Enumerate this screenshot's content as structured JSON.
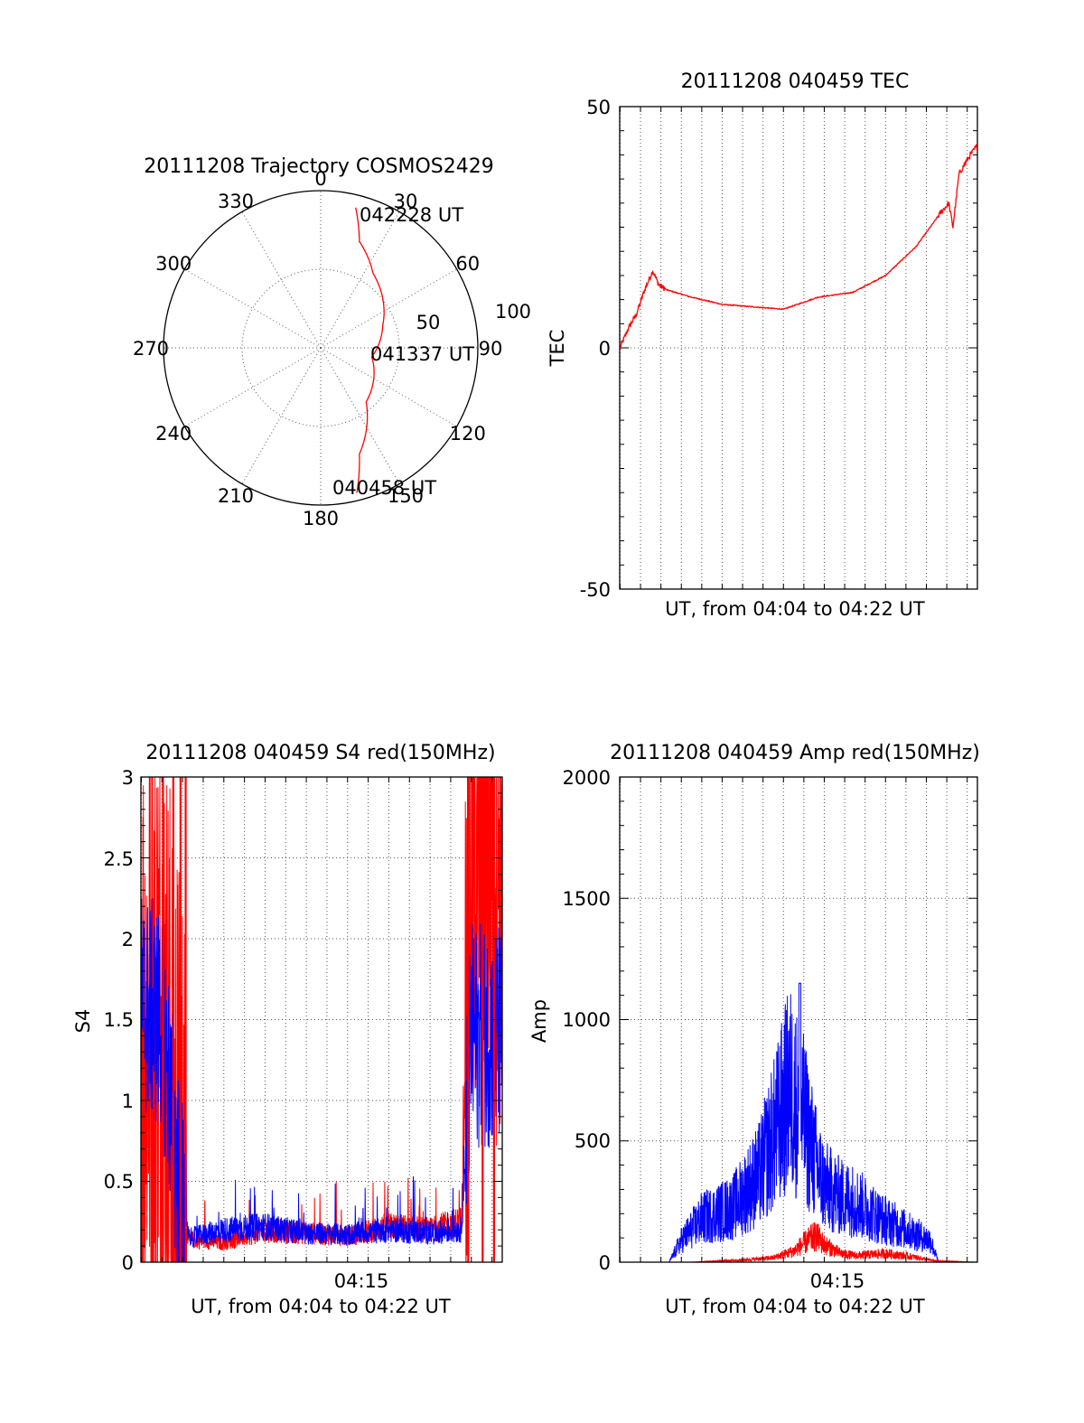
{
  "colors": {
    "red": "#ff0000",
    "blue": "#0000ff",
    "axis": "#000000"
  },
  "chart_data": [
    {
      "type": "scatter",
      "panel": "trajectory",
      "title": "20111208 Trajectory COSMOS2429",
      "azimuth_labels": [
        "0",
        "30",
        "60",
        "90",
        "120",
        "150",
        "180",
        "210",
        "240",
        "270",
        "300",
        "330"
      ],
      "radius_labels": [
        "50",
        "100"
      ],
      "track": {
        "color": "#ff0000",
        "points": [
          [
            14,
            92
          ],
          [
            20,
            72
          ],
          [
            35,
            58
          ],
          [
            70,
            42
          ],
          [
            100,
            33
          ],
          [
            140,
            45
          ],
          [
            160,
            72
          ],
          [
            166,
            95
          ]
        ]
      },
      "time_labels": [
        "042228 UT",
        "041337 UT",
        "040458 UT"
      ]
    },
    {
      "type": "line",
      "panel": "tec",
      "title": "20111208 040459 TEC",
      "xlabel": "UT, from 04:04 to 04:22 UT",
      "ylabel": "TEC",
      "xlim": [
        244.98,
        262.5
      ],
      "ylim": [
        -50,
        50
      ],
      "yticks": [
        "50",
        "0",
        "-50"
      ],
      "series": [
        {
          "color": "#ff0000",
          "x": [
            245.0,
            245.4,
            245.8,
            246.2,
            246.6,
            246.9,
            247.3,
            248.5,
            250.0,
            251.5,
            253.0,
            254.7,
            256.4,
            258.0,
            259.5,
            260.7,
            261.1,
            261.3,
            261.6,
            262.0,
            262.5
          ],
          "values": [
            0,
            4,
            7,
            12,
            16,
            13,
            12,
            10.5,
            9,
            8.5,
            8,
            10.5,
            11.5,
            15,
            21,
            28,
            30,
            25,
            36,
            39,
            42
          ]
        }
      ]
    },
    {
      "type": "line",
      "panel": "s4",
      "title": "20111208 040459 S4 red(150MHz)",
      "xlabel": "UT, from 04:04 to 04:22 UT",
      "ylabel": "S4",
      "xlim": [
        244.98,
        262.5
      ],
      "ylim": [
        0,
        3
      ],
      "xticks": [
        {
          "x": 255,
          "label": "04:15"
        }
      ],
      "yticks": [
        "3",
        "2.5",
        "2",
        "1.5",
        "1",
        "0.5",
        "0"
      ],
      "series": [
        {
          "color": "#ff0000",
          "x": [
            245.0,
            246.0,
            246.9,
            247.3,
            249.0,
            251.0,
            253.0,
            255.0,
            257.0,
            259.0,
            260.5,
            261.0,
            262.5
          ],
          "values": [
            1.5,
            1.5,
            0.4,
            0.14,
            0.12,
            0.2,
            0.18,
            0.16,
            0.22,
            0.2,
            0.25,
            2.8,
            2.8
          ]
        },
        {
          "color": "#0000ff",
          "x": [
            245.0,
            246.0,
            246.9,
            247.3,
            249.0,
            251.0,
            253.0,
            255.0,
            257.0,
            259.0,
            260.5,
            261.0,
            262.5
          ],
          "values": [
            1.6,
            1.5,
            0.4,
            0.15,
            0.2,
            0.22,
            0.18,
            0.17,
            0.2,
            0.18,
            0.2,
            1.4,
            1.4
          ]
        }
      ]
    },
    {
      "type": "line",
      "panel": "amp",
      "title": "20111208 040459 Amp red(150MHz)",
      "xlabel": "UT, from 04:04 to 04:22 UT",
      "ylabel": "Amp",
      "xlim": [
        244.98,
        262.5
      ],
      "ylim": [
        0,
        2000
      ],
      "xticks": [
        {
          "x": 255,
          "label": "04:15"
        }
      ],
      "yticks": [
        "2000",
        "1500",
        "1000",
        "500",
        "0"
      ],
      "series": [
        {
          "color": "#0000ff",
          "x": [
            245.0,
            247.4,
            248.0,
            249.0,
            250.5,
            251.8,
            252.6,
            253.3,
            254.0,
            254.6,
            255.0,
            255.8,
            256.5,
            257.8,
            259.0,
            260.2,
            260.6,
            262.5
          ],
          "values": [
            0,
            0,
            100,
            200,
            250,
            400,
            600,
            800,
            650,
            450,
            350,
            300,
            280,
            200,
            150,
            100,
            0,
            0
          ]
        },
        {
          "color": "#ff0000",
          "x": [
            245.0,
            248.5,
            251.0,
            252.5,
            253.5,
            254.2,
            254.6,
            255.0,
            255.8,
            256.5,
            258.0,
            259.3,
            260.5,
            262.5
          ],
          "values": [
            0,
            0,
            10,
            20,
            50,
            100,
            120,
            80,
            40,
            30,
            40,
            25,
            5,
            0
          ]
        }
      ]
    }
  ]
}
